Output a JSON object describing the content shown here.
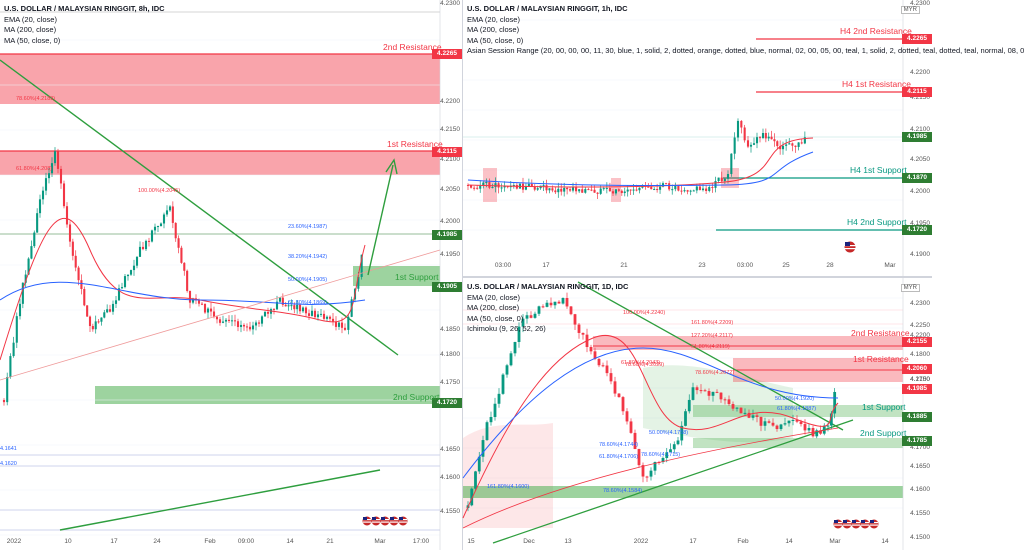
{
  "colors": {
    "resistance": "#f23645",
    "support": "#089981",
    "support_line": "#4caf50",
    "trend": "#2e9e3e",
    "ema": "#f23645",
    "ma200": "#2962ff",
    "candle_up": "#089981",
    "candle_down": "#f23645",
    "price_tag": "#2e7d32"
  },
  "panes": [
    {
      "id": "left",
      "legend": {
        "title": "U.S. DOLLAR / MALAYSIAN RINGGIT, 8h, IDC",
        "lines": [
          "EMA (20, close)",
          "MA (200, close)",
          "MA (50, close, 0)"
        ]
      },
      "y_ticks": [
        "4.2300",
        "4.2200",
        "4.2150",
        "4.2100",
        "4.2050",
        "4.2000",
        "4.1950",
        "4.1850",
        "4.1800",
        "4.1750",
        "4.1650",
        "4.1600",
        "4.1550"
      ],
      "x_ticks": [
        "2022",
        "10",
        "17",
        "24",
        "Feb",
        "09:00",
        "14",
        "21",
        "Mar",
        "17:00"
      ],
      "price_tags": [
        "4.2265",
        "4.2115",
        "4.1985",
        "4.1905",
        "4.1720"
      ],
      "zone_labels": [
        "2nd Resistance",
        "1st Resistance",
        "1st Support",
        "2nd Support"
      ],
      "fib_labels": [
        "78.60%(4.2189)",
        "61.80%(4.208)",
        "100.00%(4.2045)",
        "23.60%(4.1987)",
        "38.20%(4.1942)",
        "50.00%(4.1905)",
        "61.80%(4.1869)"
      ],
      "left_edge_labels": [
        "4.1641",
        "4.1620"
      ],
      "chart_data": {
        "type": "candlestick",
        "ylim": [
          4.155,
          4.232
        ],
        "levels": [
          {
            "name": "2nd Resistance",
            "value": 4.2265
          },
          {
            "name": "1st Resistance",
            "value": 4.2115
          },
          {
            "name": "1st Support",
            "value": 4.1905
          },
          {
            "name": "2nd Support",
            "value": 4.172
          }
        ],
        "last_price": 4.1985,
        "series": [
          {
            "name": "EMA (20, close)"
          },
          {
            "name": "MA (200, close)"
          },
          {
            "name": "MA (50, close, 0)"
          }
        ]
      }
    },
    {
      "id": "top-right",
      "legend": {
        "title": "U.S. DOLLAR / MALAYSIAN RINGGIT, 1h, IDC",
        "lines": [
          "EMA (20, close)",
          "MA (200, close)",
          "MA (50, close, 0)",
          "Asian Session Range (20, 00, 00, 00, 11, 30, blue, 1, solid, 2, dotted, orange, dotted, blue, normal, 02, 00, 05, 00, teal, 1, solid, 2, dotted, teal, dotted, teal, normal, 08, 0"
        ]
      },
      "currency": "MYR",
      "y_ticks": [
        "4.2300",
        "4.2200",
        "4.2150",
        "4.2100",
        "4.2050",
        "4.2000",
        "4.1950",
        "4.1900",
        "4.1850",
        "4.1800"
      ],
      "x_ticks": [
        "03:00",
        "17",
        "21",
        "23",
        "03:00",
        "25",
        "28",
        "Mar"
      ],
      "price_tags": [
        "4.2265",
        "4.2115",
        "4.1985",
        "4.1870",
        "4.1720"
      ],
      "zone_labels": [
        "H4 2nd Resistance",
        "H4 1st Resistance",
        "H4 1st Support",
        "H4 2nd Support"
      ],
      "chart_data": {
        "type": "candlestick",
        "ylim": [
          4.168,
          4.232
        ],
        "levels": [
          {
            "name": "H4 2nd Resistance",
            "value": 4.2265
          },
          {
            "name": "H4 1st Resistance",
            "value": 4.2115
          },
          {
            "name": "H4 1st Support",
            "value": 4.187
          },
          {
            "name": "H4 2nd Support",
            "value": 4.172
          }
        ],
        "last_price": 4.1985
      }
    },
    {
      "id": "bottom-right",
      "legend": {
        "title": "U.S. DOLLAR / MALAYSIAN RINGGIT, 1D, IDC",
        "lines": [
          "EMA (20, close)",
          "MA (200, close)",
          "MA (50, close, 0)",
          "Ichimoku (9, 26, 52, 26)"
        ]
      },
      "currency": "MYR",
      "y_ticks": [
        "4.2300",
        "4.2250",
        "4.2200",
        "4.2100",
        "4.2050",
        "4.1800",
        "4.1750",
        "4.1700",
        "4.1650",
        "4.1600",
        "4.1550",
        "4.1500"
      ],
      "x_ticks": [
        "15",
        "Dec",
        "13",
        "2022",
        "17",
        "Feb",
        "14",
        "Mar",
        "14"
      ],
      "price_tags": [
        "4.2155",
        "4.2060",
        "4.1985",
        "4.1885",
        "4.1785"
      ],
      "zone_labels": [
        "2nd Resistance",
        "1st Resistance",
        "1st Support",
        "2nd Support"
      ],
      "fib_labels": [
        "100.00%(4.2240)",
        "161.80%(4.2209)",
        "61.80%(4.2119)",
        "127.20%(4.2117)",
        "78.60%(4.2072)",
        "61.80%(4.2043)",
        "78.60%(4.2029)",
        "50.00%(4.1920)",
        "61.80%(4.1887)",
        "78.60%(4.1744)",
        "61.80%(4.1706)",
        "78.60%(4.1715)",
        "50.00%(4.1758)",
        "161.80%(4.1600)",
        "78.60%(4.1584)"
      ],
      "chart_data": {
        "type": "candlestick",
        "ylim": [
          4.148,
          4.234
        ],
        "levels": [
          {
            "name": "2nd Resistance",
            "value": 4.2155
          },
          {
            "name": "1st Resistance",
            "value": 4.206
          },
          {
            "name": "1st Support",
            "value": 4.1885
          },
          {
            "name": "2nd Support",
            "value": 4.1785
          }
        ],
        "last_price": 4.1985
      }
    }
  ]
}
